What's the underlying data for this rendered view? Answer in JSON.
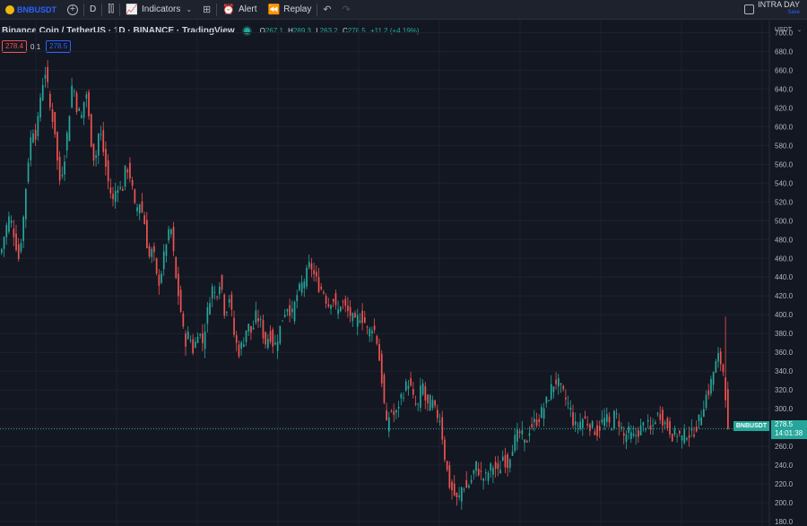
{
  "toolbar": {
    "symbol": "BNBUSDT",
    "interval": "D",
    "indicators_label": "Indicators",
    "alert_label": "Alert",
    "replay_label": "Replay",
    "intraday_title": "INTRA DAY",
    "intraday_sub": "Save"
  },
  "legend": {
    "title": "Binance Coin / TetherUS · 1D · BINANCE · TradingView",
    "o_label": "O",
    "o": "267.1",
    "h_label": "H",
    "h": "289.3",
    "l_label": "L",
    "l": "263.2",
    "c_label": "C",
    "c": "278.5",
    "change": "+11.2 (+4.19%)"
  },
  "inputs": {
    "v1": "278.4",
    "v2": "0.1",
    "v3": "278.5"
  },
  "price_axis": {
    "currency": "USDT"
  },
  "last_price": {
    "symbol": "BNBUSDT",
    "price": "278.5",
    "countdown": "14:01:38"
  },
  "colors": {
    "up": "#26a69a",
    "down": "#ef5350",
    "background": "#131722",
    "grid": "#1e222d",
    "accent": "#2962ff"
  },
  "chart_data": {
    "type": "candlestick",
    "ylim": [
      180,
      710
    ],
    "yticks": [
      "180.0",
      "200.0",
      "220.0",
      "240.0",
      "260.0",
      "280.0",
      "300.0",
      "320.0",
      "340.0",
      "360.0",
      "380.0",
      "400.0",
      "420.0",
      "440.0",
      "460.0",
      "480.0",
      "500.0",
      "520.0",
      "540.0",
      "560.0",
      "580.0",
      "600.0",
      "620.0",
      "640.0",
      "660.0",
      "680.0",
      "700.0"
    ],
    "last_close": 278.5,
    "close_path": [
      [
        0,
        465
      ],
      [
        5,
        490
      ],
      [
        10,
        505
      ],
      [
        15,
        485
      ],
      [
        20,
        460
      ],
      [
        25,
        500
      ],
      [
        30,
        560
      ],
      [
        35,
        600
      ],
      [
        40,
        590
      ],
      [
        45,
        640
      ],
      [
        50,
        660
      ],
      [
        55,
        620
      ],
      [
        60,
        600
      ],
      [
        65,
        540
      ],
      [
        70,
        560
      ],
      [
        75,
        600
      ],
      [
        80,
        650
      ],
      [
        85,
        620
      ],
      [
        90,
        610
      ],
      [
        95,
        640
      ],
      [
        100,
        590
      ],
      [
        105,
        560
      ],
      [
        110,
        600
      ],
      [
        115,
        570
      ],
      [
        120,
        540
      ],
      [
        125,
        520
      ],
      [
        130,
        540
      ],
      [
        135,
        530
      ],
      [
        140,
        560
      ],
      [
        145,
        545
      ],
      [
        150,
        510
      ],
      [
        155,
        520
      ],
      [
        160,
        500
      ],
      [
        165,
        460
      ],
      [
        170,
        470
      ],
      [
        175,
        430
      ],
      [
        180,
        450
      ],
      [
        185,
        480
      ],
      [
        190,
        490
      ],
      [
        195,
        440
      ],
      [
        200,
        410
      ],
      [
        205,
        370
      ],
      [
        210,
        380
      ],
      [
        215,
        360
      ],
      [
        220,
        385
      ],
      [
        225,
        370
      ],
      [
        230,
        400
      ],
      [
        235,
        430
      ],
      [
        240,
        420
      ],
      [
        245,
        440
      ],
      [
        250,
        400
      ],
      [
        255,
        420
      ],
      [
        260,
        380
      ],
      [
        265,
        360
      ],
      [
        270,
        370
      ],
      [
        275,
        390
      ],
      [
        280,
        380
      ],
      [
        285,
        400
      ],
      [
        290,
        390
      ],
      [
        295,
        370
      ],
      [
        300,
        380
      ],
      [
        305,
        365
      ],
      [
        310,
        380
      ],
      [
        315,
        400
      ],
      [
        320,
        410
      ],
      [
        325,
        400
      ],
      [
        330,
        420
      ],
      [
        335,
        430
      ],
      [
        340,
        440
      ],
      [
        345,
        455
      ],
      [
        350,
        440
      ],
      [
        355,
        430
      ],
      [
        360,
        425
      ],
      [
        365,
        410
      ],
      [
        370,
        420
      ],
      [
        375,
        400
      ],
      [
        380,
        415
      ],
      [
        385,
        405
      ],
      [
        390,
        400
      ],
      [
        395,
        390
      ],
      [
        400,
        400
      ],
      [
        405,
        395
      ],
      [
        410,
        380
      ],
      [
        415,
        390
      ],
      [
        420,
        370
      ],
      [
        425,
        330
      ],
      [
        430,
        280
      ],
      [
        435,
        300
      ],
      [
        440,
        290
      ],
      [
        445,
        310
      ],
      [
        450,
        320
      ],
      [
        455,
        330
      ],
      [
        460,
        310
      ],
      [
        465,
        300
      ],
      [
        470,
        330
      ],
      [
        475,
        300
      ],
      [
        480,
        310
      ],
      [
        485,
        295
      ],
      [
        490,
        290
      ],
      [
        495,
        250
      ],
      [
        500,
        220
      ],
      [
        505,
        210
      ],
      [
        510,
        200
      ],
      [
        515,
        220
      ],
      [
        520,
        215
      ],
      [
        525,
        225
      ],
      [
        530,
        240
      ],
      [
        535,
        230
      ],
      [
        540,
        225
      ],
      [
        545,
        235
      ],
      [
        550,
        240
      ],
      [
        555,
        230
      ],
      [
        560,
        250
      ],
      [
        565,
        240
      ],
      [
        570,
        260
      ],
      [
        575,
        270
      ],
      [
        580,
        275
      ],
      [
        585,
        260
      ],
      [
        590,
        280
      ],
      [
        595,
        285
      ],
      [
        600,
        290
      ],
      [
        605,
        300
      ],
      [
        610,
        310
      ],
      [
        615,
        325
      ],
      [
        620,
        330
      ],
      [
        625,
        320
      ],
      [
        630,
        310
      ],
      [
        635,
        300
      ],
      [
        640,
        280
      ],
      [
        645,
        285
      ],
      [
        650,
        290
      ],
      [
        655,
        285
      ],
      [
        660,
        280
      ],
      [
        665,
        275
      ],
      [
        670,
        285
      ],
      [
        675,
        290
      ],
      [
        680,
        280
      ],
      [
        685,
        295
      ],
      [
        690,
        285
      ],
      [
        695,
        270
      ],
      [
        700,
        275
      ],
      [
        705,
        268
      ],
      [
        710,
        275
      ],
      [
        715,
        280
      ],
      [
        720,
        285
      ],
      [
        725,
        275
      ],
      [
        730,
        290
      ],
      [
        735,
        295
      ],
      [
        740,
        285
      ],
      [
        745,
        280
      ],
      [
        750,
        270
      ],
      [
        755,
        275
      ],
      [
        760,
        268
      ],
      [
        765,
        275
      ],
      [
        770,
        272
      ],
      [
        775,
        280
      ],
      [
        780,
        290
      ],
      [
        785,
        310
      ],
      [
        790,
        320
      ],
      [
        795,
        340
      ],
      [
        800,
        355
      ],
      [
        805,
        345
      ],
      [
        808,
        320
      ],
      [
        811,
        278.5
      ]
    ]
  }
}
